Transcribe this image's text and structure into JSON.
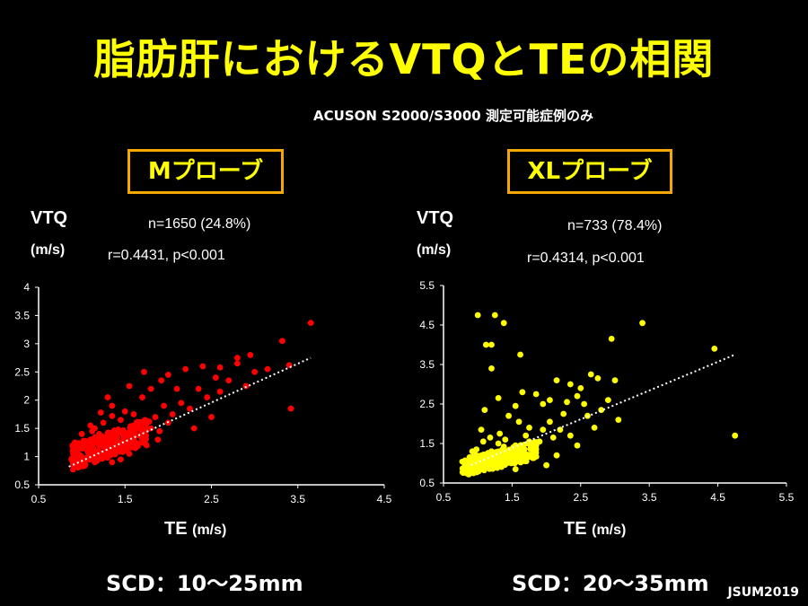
{
  "title": "脂肪肝におけるVTQとTEの相関",
  "subtitle": "ACUSON S2000/S3000  測定可能症例のみ",
  "credit": "JSUM2019",
  "panels": [
    {
      "probe": "Mプローブ",
      "y_label": "VTQ",
      "y_unit": "(m/s)",
      "n_text": "n=1650 (24.8%)",
      "r_text": "r=0.4431, p<0.001",
      "x_label": "TE",
      "x_unit": "(m/s)",
      "scd": "SCD：10～25mm"
    },
    {
      "probe": "XLプローブ",
      "y_label": "VTQ",
      "y_unit": "(m/s)",
      "n_text": "n=733 (78.4%)",
      "r_text": "r=0.4314, p<0.001",
      "x_label": "TE",
      "x_unit": "(m/s)",
      "scd": "SCD：20～35mm"
    }
  ],
  "chart_data": [
    {
      "type": "scatter",
      "color": "#ff0000",
      "xlabel": "TE (m/s)",
      "ylabel": "VTQ (m/s)",
      "xlim": [
        0.5,
        4.5
      ],
      "ylim": [
        0.5,
        4
      ],
      "xticks": [
        "0.5",
        "1.5",
        "2.5",
        "3.5",
        "4.5"
      ],
      "yticks": [
        "0.5",
        "1",
        "1.5",
        "2",
        "2.5",
        "3",
        "3.5",
        "4"
      ],
      "trendline": {
        "x": [
          0.85,
          3.65
        ],
        "y": [
          0.82,
          2.75
        ],
        "style": "dotted",
        "color": "#ffffff"
      },
      "points": [
        [
          3.65,
          3.37
        ],
        [
          3.32,
          3.05
        ],
        [
          3.4,
          2.62
        ],
        [
          3.42,
          1.85
        ],
        [
          2.95,
          2.8
        ],
        [
          2.8,
          2.75
        ],
        [
          2.6,
          2.58
        ],
        [
          2.55,
          2.4
        ],
        [
          2.4,
          2.6
        ],
        [
          2.2,
          2.55
        ],
        [
          2.1,
          2.2
        ],
        [
          2.0,
          2.45
        ],
        [
          1.95,
          1.9
        ],
        [
          2.25,
          1.85
        ],
        [
          2.5,
          1.7
        ],
        [
          2.6,
          2.15
        ],
        [
          2.8,
          2.65
        ],
        [
          2.3,
          1.5
        ],
        [
          1.8,
          2.2
        ],
        [
          1.7,
          2.05
        ],
        [
          1.6,
          1.75
        ],
        [
          1.5,
          1.8
        ],
        [
          1.45,
          1.65
        ],
        [
          1.35,
          1.9
        ],
        [
          1.3,
          2.05
        ],
        [
          1.25,
          1.6
        ],
        [
          1.2,
          1.4
        ],
        [
          1.15,
          1.5
        ],
        [
          1.1,
          1.3
        ],
        [
          1.05,
          1.2
        ],
        [
          1.0,
          1.15
        ],
        [
          0.95,
          1.1
        ],
        [
          0.9,
          1.05
        ],
        [
          0.88,
          0.95
        ],
        [
          0.92,
          1.25
        ],
        [
          1.0,
          1.4
        ],
        [
          1.1,
          1.55
        ],
        [
          1.2,
          1.2
        ],
        [
          1.3,
          1.15
        ],
        [
          1.4,
          1.3
        ],
        [
          1.5,
          1.25
        ],
        [
          1.6,
          1.4
        ],
        [
          1.7,
          1.35
        ],
        [
          1.8,
          1.5
        ],
        [
          1.9,
          1.45
        ],
        [
          2.0,
          1.6
        ],
        [
          1.55,
          1.05
        ],
        [
          1.45,
          0.95
        ],
        [
          1.35,
          0.9
        ],
        [
          1.25,
          0.98
        ],
        [
          1.15,
          0.9
        ],
        [
          1.05,
          0.95
        ],
        [
          0.98,
          0.88
        ],
        [
          1.62,
          1.15
        ],
        [
          1.75,
          1.2
        ],
        [
          2.05,
          1.75
        ],
        [
          2.15,
          1.95
        ],
        [
          1.85,
          1.7
        ],
        [
          1.65,
          1.55
        ],
        [
          1.42,
          1.48
        ],
        [
          1.28,
          1.33
        ],
        [
          1.18,
          1.05
        ],
        [
          1.08,
          1.02
        ],
        [
          0.96,
          0.98
        ],
        [
          1.02,
          1.28
        ],
        [
          1.12,
          1.18
        ],
        [
          1.22,
          1.25
        ],
        [
          1.32,
          1.42
        ],
        [
          1.38,
          1.12
        ],
        [
          1.48,
          1.38
        ],
        [
          1.58,
          1.2
        ],
        [
          1.68,
          1.48
        ],
        [
          1.78,
          1.62
        ],
        [
          1.88,
          1.3
        ],
        [
          2.35,
          2.2
        ],
        [
          2.45,
          2.05
        ],
        [
          2.7,
          2.35
        ],
        [
          3.0,
          2.5
        ],
        [
          3.15,
          2.55
        ],
        [
          2.9,
          2.25
        ],
        [
          1.92,
          2.35
        ],
        [
          1.72,
          2.5
        ],
        [
          1.55,
          2.25
        ],
        [
          1.35,
          1.72
        ],
        [
          1.22,
          1.78
        ],
        [
          1.12,
          1.45
        ],
        [
          0.95,
          1.2
        ],
        [
          0.9,
          1.15
        ]
      ]
    },
    {
      "type": "scatter",
      "color": "#ffff00",
      "xlabel": "TE (m/s)",
      "ylabel": "VTQ (m/s)",
      "xlim": [
        0.5,
        5.5
      ],
      "ylim": [
        0.5,
        5.5
      ],
      "xticks": [
        "0.5",
        "1.5",
        "2.5",
        "3.5",
        "4.5",
        "5.5"
      ],
      "yticks": [
        "0.5",
        "1.5",
        "2.5",
        "3.5",
        "4.5",
        "5.5"
      ],
      "trendline": {
        "x": [
          0.9,
          4.75
        ],
        "y": [
          0.95,
          3.75
        ],
        "style": "dotted",
        "color": "#ffffff"
      },
      "points": [
        [
          1.0,
          4.75
        ],
        [
          1.25,
          4.75
        ],
        [
          1.38,
          4.55
        ],
        [
          3.4,
          4.55
        ],
        [
          1.12,
          4.0
        ],
        [
          1.2,
          4.0
        ],
        [
          2.95,
          4.15
        ],
        [
          4.45,
          3.9
        ],
        [
          4.75,
          1.7
        ],
        [
          1.62,
          3.75
        ],
        [
          1.2,
          3.4
        ],
        [
          3.0,
          3.1
        ],
        [
          2.65,
          3.25
        ],
        [
          2.75,
          3.15
        ],
        [
          2.15,
          3.1
        ],
        [
          2.35,
          3.0
        ],
        [
          1.65,
          2.8
        ],
        [
          1.85,
          2.75
        ],
        [
          1.55,
          2.45
        ],
        [
          1.3,
          2.65
        ],
        [
          1.1,
          2.35
        ],
        [
          2.45,
          2.7
        ],
        [
          2.55,
          2.5
        ],
        [
          2.25,
          2.25
        ],
        [
          2.05,
          2.05
        ],
        [
          1.95,
          1.85
        ],
        [
          1.75,
          1.9
        ],
        [
          2.6,
          2.2
        ],
        [
          2.8,
          2.35
        ],
        [
          2.35,
          1.7
        ],
        [
          2.45,
          1.45
        ],
        [
          2.15,
          1.2
        ],
        [
          1.85,
          1.35
        ],
        [
          2.0,
          0.95
        ],
        [
          1.55,
          0.85
        ],
        [
          1.3,
          1.5
        ],
        [
          1.2,
          1.3
        ],
        [
          1.1,
          1.2
        ],
        [
          1.0,
          1.1
        ],
        [
          0.95,
          1.0
        ],
        [
          0.9,
          0.92
        ],
        [
          0.88,
          1.15
        ],
        [
          0.98,
          1.35
        ],
        [
          1.08,
          1.55
        ],
        [
          1.15,
          1.05
        ],
        [
          1.25,
          1.05
        ],
        [
          1.35,
          1.2
        ],
        [
          1.45,
          1.3
        ],
        [
          1.55,
          1.45
        ],
        [
          1.65,
          1.35
        ],
        [
          1.75,
          1.55
        ],
        [
          1.4,
          1.6
        ],
        [
          1.5,
          1.1
        ],
        [
          1.6,
          1.2
        ],
        [
          1.7,
          1.15
        ],
        [
          1.8,
          1.25
        ],
        [
          1.9,
          1.55
        ],
        [
          2.1,
          1.65
        ],
        [
          2.2,
          1.85
        ],
        [
          1.32,
          1.75
        ],
        [
          1.18,
          1.65
        ],
        [
          1.05,
          1.85
        ],
        [
          0.92,
          1.3
        ],
        [
          1.02,
          0.95
        ],
        [
          1.12,
          0.9
        ],
        [
          1.28,
          0.95
        ],
        [
          1.42,
          1.0
        ],
        [
          2.3,
          2.55
        ],
        [
          2.5,
          2.9
        ],
        [
          2.05,
          2.6
        ],
        [
          1.95,
          2.5
        ],
        [
          1.45,
          2.2
        ],
        [
          1.6,
          2.05
        ],
        [
          2.7,
          1.9
        ],
        [
          2.9,
          2.6
        ],
        [
          3.05,
          2.1
        ],
        [
          1.7,
          1.7
        ],
        [
          1.38,
          1.42
        ],
        [
          1.22,
          1.15
        ],
        [
          0.96,
          1.22
        ]
      ]
    }
  ]
}
